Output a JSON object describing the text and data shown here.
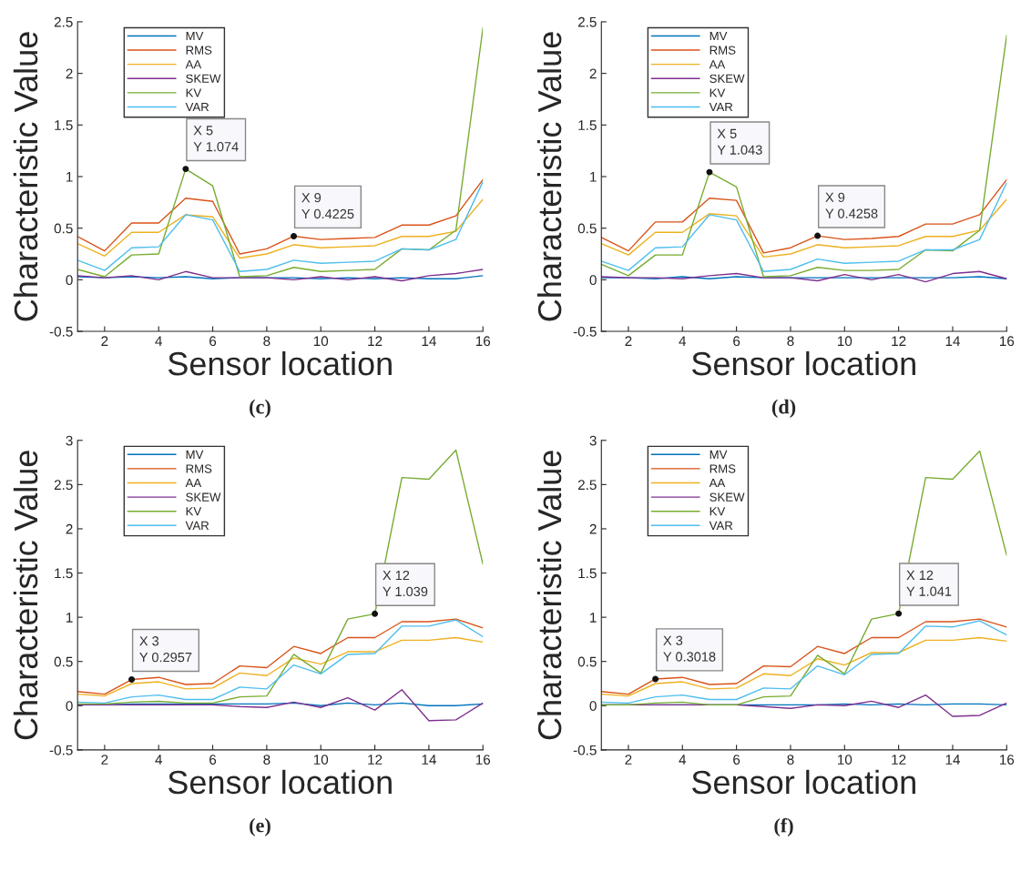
{
  "chart_data": [
    {
      "type": "line",
      "xlabel": "Sensor location",
      "ylabel": "Characteristic Value",
      "x": [
        1,
        2,
        3,
        4,
        5,
        6,
        7,
        8,
        9,
        10,
        11,
        12,
        13,
        14,
        15,
        16
      ],
      "xlim": [
        1,
        16
      ],
      "xticks": [
        2,
        4,
        6,
        8,
        10,
        12,
        14,
        16
      ],
      "ylim": [
        -0.5,
        2.5
      ],
      "yticks": [
        -0.5,
        0,
        0.5,
        1,
        1.5,
        2,
        2.5
      ],
      "legend": "top left",
      "grid": false,
      "series": [
        {
          "name": "MV",
          "color": "#0072bd",
          "values": [
            0.03,
            0.02,
            0.03,
            0.02,
            0.03,
            0.01,
            0.02,
            0.02,
            0.02,
            0.01,
            0.02,
            0.01,
            0.02,
            0.01,
            0.01,
            0.04
          ]
        },
        {
          "name": "RMS",
          "color": "#d95319",
          "values": [
            0.42,
            0.28,
            0.55,
            0.55,
            0.79,
            0.76,
            0.25,
            0.3,
            0.4225,
            0.39,
            0.4,
            0.41,
            0.53,
            0.53,
            0.62,
            0.97
          ]
        },
        {
          "name": "AA",
          "color": "#edb120",
          "values": [
            0.35,
            0.23,
            0.46,
            0.46,
            0.63,
            0.61,
            0.21,
            0.25,
            0.34,
            0.31,
            0.32,
            0.33,
            0.42,
            0.42,
            0.47,
            0.78
          ]
        },
        {
          "name": "SKEW",
          "color": "#7e2f8e",
          "values": [
            0.04,
            0.02,
            0.04,
            0.0,
            0.08,
            0.02,
            0.02,
            0.02,
            0.0,
            0.03,
            0.0,
            0.03,
            -0.01,
            0.04,
            0.06,
            0.1
          ]
        },
        {
          "name": "KV",
          "color": "#77ac30",
          "values": [
            0.1,
            0.03,
            0.24,
            0.25,
            1.074,
            0.91,
            0.03,
            0.04,
            0.12,
            0.08,
            0.09,
            0.1,
            0.3,
            0.29,
            0.48,
            2.44
          ]
        },
        {
          "name": "VAR",
          "color": "#4dbeee",
          "values": [
            0.19,
            0.09,
            0.31,
            0.32,
            0.63,
            0.58,
            0.08,
            0.1,
            0.19,
            0.16,
            0.17,
            0.18,
            0.3,
            0.29,
            0.39,
            0.95
          ]
        }
      ],
      "annotations": [
        {
          "text": "X 5\nY 1.074",
          "x": 5,
          "y": 1.074
        },
        {
          "text": "X 9\nY 0.4225",
          "x": 9,
          "y": 0.4225
        },
        "(c)"
      ]
    },
    {
      "type": "line",
      "xlabel": "Sensor location",
      "ylabel": "Characteristic Value",
      "x": [
        1,
        2,
        3,
        4,
        5,
        6,
        7,
        8,
        9,
        10,
        11,
        12,
        13,
        14,
        15,
        16
      ],
      "xlim": [
        1,
        16
      ],
      "xticks": [
        2,
        4,
        6,
        8,
        10,
        12,
        14,
        16
      ],
      "ylim": [
        -0.5,
        2.5
      ],
      "yticks": [
        -0.5,
        0,
        0.5,
        1,
        1.5,
        2,
        2.5
      ],
      "legend": "top left",
      "grid": false,
      "series": [
        {
          "name": "MV",
          "color": "#0072bd",
          "values": [
            0.02,
            0.02,
            0.01,
            0.03,
            0.01,
            0.03,
            0.02,
            0.02,
            0.02,
            0.02,
            0.02,
            0.02,
            0.02,
            0.02,
            0.03,
            0.01
          ]
        },
        {
          "name": "RMS",
          "color": "#d95319",
          "values": [
            0.41,
            0.28,
            0.56,
            0.56,
            0.79,
            0.77,
            0.26,
            0.31,
            0.4258,
            0.39,
            0.4,
            0.42,
            0.54,
            0.54,
            0.63,
            0.97
          ]
        },
        {
          "name": "AA",
          "color": "#edb120",
          "values": [
            0.35,
            0.24,
            0.46,
            0.46,
            0.64,
            0.62,
            0.22,
            0.25,
            0.34,
            0.31,
            0.32,
            0.33,
            0.42,
            0.42,
            0.48,
            0.78
          ]
        },
        {
          "name": "SKEW",
          "color": "#7e2f8e",
          "values": [
            0.03,
            0.02,
            0.02,
            0.01,
            0.04,
            0.06,
            0.02,
            0.02,
            -0.01,
            0.05,
            0.0,
            0.05,
            -0.02,
            0.06,
            0.08,
            0.01
          ]
        },
        {
          "name": "KV",
          "color": "#77ac30",
          "values": [
            0.15,
            0.04,
            0.24,
            0.24,
            1.043,
            0.9,
            0.03,
            0.04,
            0.12,
            0.09,
            0.09,
            0.1,
            0.29,
            0.28,
            0.48,
            2.37
          ]
        },
        {
          "name": "VAR",
          "color": "#4dbeee",
          "values": [
            0.18,
            0.09,
            0.31,
            0.32,
            0.63,
            0.58,
            0.08,
            0.1,
            0.2,
            0.16,
            0.17,
            0.18,
            0.29,
            0.29,
            0.39,
            0.94
          ]
        }
      ],
      "annotations": [
        {
          "text": "X 5\nY 1.043",
          "x": 5,
          "y": 1.043
        },
        {
          "text": "X 9\nY 0.4258",
          "x": 9,
          "y": 0.4258
        },
        "(d)"
      ]
    },
    {
      "type": "line",
      "xlabel": "Sensor location",
      "ylabel": "Characteristic Value",
      "x": [
        1,
        2,
        3,
        4,
        5,
        6,
        7,
        8,
        9,
        10,
        11,
        12,
        13,
        14,
        15,
        16
      ],
      "xlim": [
        1,
        16
      ],
      "xticks": [
        2,
        4,
        6,
        8,
        10,
        12,
        14,
        16
      ],
      "ylim": [
        -0.5,
        3
      ],
      "yticks": [
        -0.5,
        0,
        0.5,
        1,
        1.5,
        2,
        2.5,
        3
      ],
      "legend": "top left",
      "grid": false,
      "series": [
        {
          "name": "MV",
          "color": "#0072bd",
          "values": [
            0.01,
            0.01,
            0.02,
            0.02,
            0.02,
            0.02,
            0.02,
            0.02,
            0.03,
            0.0,
            0.03,
            0.01,
            0.03,
            0.0,
            0.0,
            0.02
          ]
        },
        {
          "name": "RMS",
          "color": "#d95319",
          "values": [
            0.16,
            0.13,
            0.2957,
            0.32,
            0.24,
            0.25,
            0.45,
            0.43,
            0.67,
            0.59,
            0.77,
            0.77,
            0.95,
            0.95,
            0.98,
            0.88
          ]
        },
        {
          "name": "AA",
          "color": "#edb120",
          "values": [
            0.13,
            0.11,
            0.25,
            0.27,
            0.19,
            0.2,
            0.37,
            0.34,
            0.54,
            0.47,
            0.61,
            0.61,
            0.74,
            0.74,
            0.77,
            0.72
          ]
        },
        {
          "name": "SKEW",
          "color": "#7e2f8e",
          "values": [
            0.01,
            0.01,
            0.01,
            0.01,
            0.01,
            0.01,
            -0.01,
            -0.02,
            0.04,
            -0.02,
            0.09,
            -0.05,
            0.18,
            -0.17,
            -0.16,
            0.03
          ]
        },
        {
          "name": "KV",
          "color": "#77ac30",
          "values": [
            0.02,
            0.02,
            0.04,
            0.05,
            0.03,
            0.03,
            0.1,
            0.11,
            0.58,
            0.37,
            0.98,
            1.039,
            2.58,
            2.56,
            2.89,
            1.6
          ]
        },
        {
          "name": "VAR",
          "color": "#4dbeee",
          "values": [
            0.04,
            0.03,
            0.1,
            0.12,
            0.07,
            0.07,
            0.21,
            0.19,
            0.46,
            0.36,
            0.58,
            0.59,
            0.9,
            0.9,
            0.97,
            0.78
          ]
        }
      ],
      "annotations": [
        {
          "text": "X 3\nY 0.2957",
          "x": 3,
          "y": 0.2957
        },
        {
          "text": "X 12\nY 1.039",
          "x": 12,
          "y": 1.039
        },
        "(e)"
      ]
    },
    {
      "type": "line",
      "xlabel": "Sensor location",
      "ylabel": "Characteristic Value",
      "x": [
        1,
        2,
        3,
        4,
        5,
        6,
        7,
        8,
        9,
        10,
        11,
        12,
        13,
        14,
        15,
        16
      ],
      "xlim": [
        1,
        16
      ],
      "xticks": [
        2,
        4,
        6,
        8,
        10,
        12,
        14,
        16
      ],
      "ylim": [
        -0.5,
        3
      ],
      "yticks": [
        -0.5,
        0,
        0.5,
        1,
        1.5,
        2,
        2.5,
        3
      ],
      "legend": "top left",
      "grid": false,
      "series": [
        {
          "name": "MV",
          "color": "#0072bd",
          "values": [
            0.01,
            0.01,
            0.01,
            0.01,
            0.01,
            0.01,
            0.01,
            0.01,
            0.01,
            0.02,
            0.01,
            0.02,
            0.01,
            0.02,
            0.02,
            0.01
          ]
        },
        {
          "name": "RMS",
          "color": "#d95319",
          "values": [
            0.16,
            0.13,
            0.3018,
            0.32,
            0.24,
            0.25,
            0.45,
            0.44,
            0.67,
            0.59,
            0.77,
            0.77,
            0.95,
            0.95,
            0.98,
            0.89
          ]
        },
        {
          "name": "AA",
          "color": "#edb120",
          "values": [
            0.13,
            0.11,
            0.25,
            0.27,
            0.19,
            0.2,
            0.36,
            0.34,
            0.53,
            0.46,
            0.6,
            0.6,
            0.74,
            0.74,
            0.77,
            0.73
          ]
        },
        {
          "name": "SKEW",
          "color": "#7e2f8e",
          "values": [
            0.01,
            0.01,
            0.01,
            0.01,
            0.01,
            0.01,
            -0.01,
            -0.03,
            0.01,
            0.0,
            0.05,
            -0.02,
            0.12,
            -0.12,
            -0.11,
            0.03
          ]
        },
        {
          "name": "KV",
          "color": "#77ac30",
          "values": [
            0.01,
            0.01,
            0.03,
            0.04,
            0.01,
            0.01,
            0.1,
            0.11,
            0.57,
            0.36,
            0.98,
            1.041,
            2.58,
            2.56,
            2.88,
            1.7
          ]
        },
        {
          "name": "VAR",
          "color": "#4dbeee",
          "values": [
            0.04,
            0.03,
            0.1,
            0.12,
            0.07,
            0.07,
            0.2,
            0.19,
            0.45,
            0.35,
            0.58,
            0.59,
            0.9,
            0.89,
            0.96,
            0.8
          ]
        }
      ],
      "annotations": [
        {
          "text": "X 3\nY 0.3018",
          "x": 3,
          "y": 0.3018
        },
        {
          "text": "X 12\nY 1.041",
          "x": 12,
          "y": 1.041
        },
        "(f)"
      ]
    }
  ]
}
